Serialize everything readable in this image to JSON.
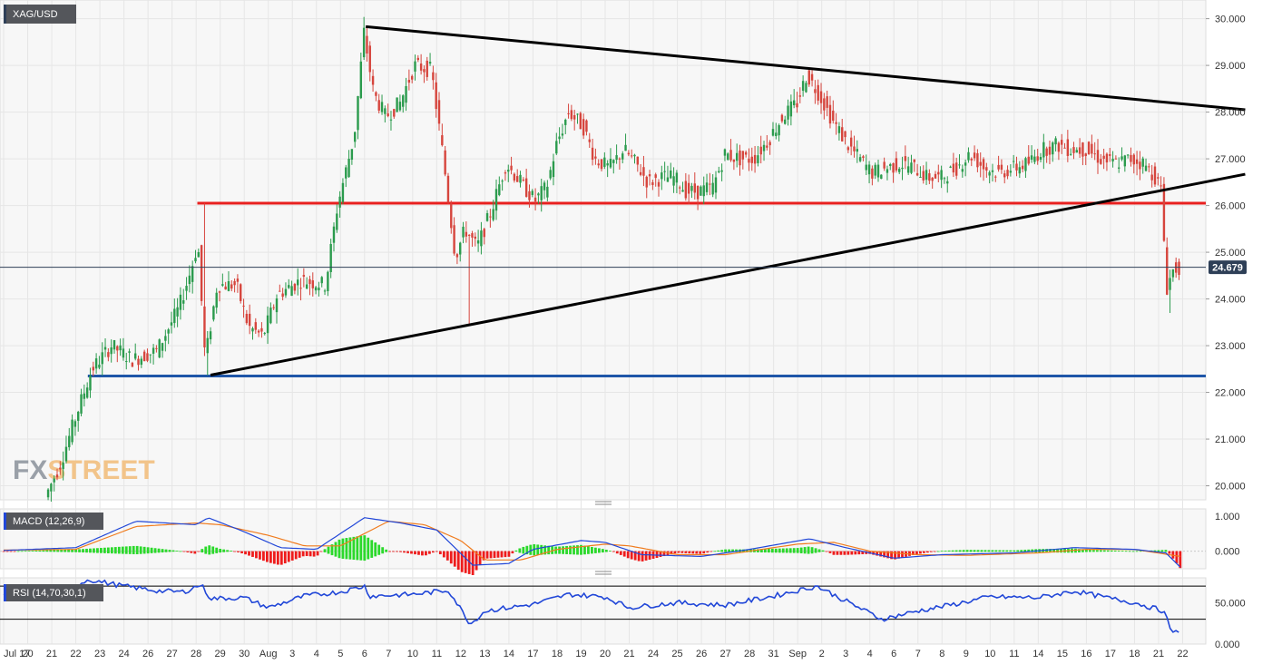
{
  "chart_data": {
    "type": "candlestick",
    "symbol": "XAG/USD",
    "watermark": {
      "part1": "FX",
      "part2": "STREET"
    },
    "current_price": 24.679,
    "price_axis": {
      "ylim": [
        19.7,
        30.4
      ],
      "ticks": [
        "20.000",
        "21.000",
        "22.000",
        "23.000",
        "24.000",
        "25.000",
        "26.000",
        "27.000",
        "28.000",
        "29.000",
        "30.000"
      ]
    },
    "x_axis": {
      "labels": [
        "Jul 17",
        "20",
        "21",
        "22",
        "23",
        "24",
        "26",
        "27",
        "28",
        "29",
        "30",
        "Aug",
        "3",
        "4",
        "5",
        "6",
        "7",
        "10",
        "11",
        "12",
        "13",
        "14",
        "17",
        "18",
        "19",
        "20",
        "21",
        "24",
        "25",
        "26",
        "27",
        "28",
        "31",
        "Sep",
        "2",
        "3",
        "4",
        "6",
        "7",
        "8",
        "9",
        "10",
        "11",
        "14",
        "15",
        "16",
        "17",
        "18",
        "21",
        "22"
      ]
    },
    "horizontal_levels": [
      {
        "price": 26.05,
        "color": "#e8201f"
      },
      {
        "price": 22.35,
        "color": "#1f56a8"
      }
    ],
    "trendlines": [
      {
        "from": {
          "day": 15.05,
          "price": 29.83
        },
        "to": {
          "day": 51.6,
          "price": 28.05
        }
      },
      {
        "from": {
          "day": 8.6,
          "price": 22.37
        },
        "to": {
          "day": 51.6,
          "price": 26.67
        }
      }
    ],
    "macd": {
      "label": "MACD (12,26,9)",
      "ylim": [
        -0.5,
        1.2
      ],
      "ticks": [
        "1.000",
        "0.000"
      ]
    },
    "rsi": {
      "label": "RSI (14,70,30,1)",
      "ylim": [
        0,
        80
      ],
      "levels": [
        70,
        30
      ],
      "ticks": [
        "50.000",
        "0.000"
      ]
    },
    "colors": {
      "up": "#2b9b4d",
      "down": "#d6453d",
      "macd_line": "#2147d8",
      "signal_line": "#f07b1d",
      "hist_up": "#2bd92b",
      "hist_down": "#ee1c1c",
      "rsi_line": "#2147d8",
      "label_bg": "#54565b",
      "price_tag_bg": "#2e3f57"
    }
  }
}
